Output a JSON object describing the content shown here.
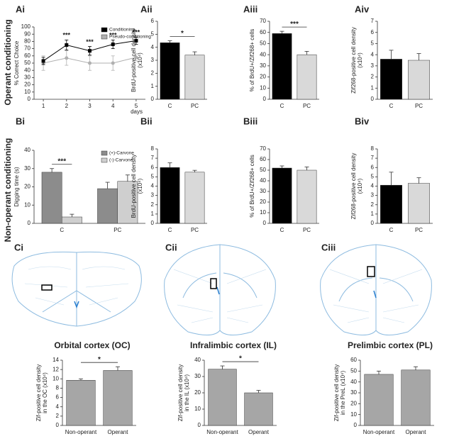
{
  "row_labels": [
    "Operant conditioning",
    "Non-operant conditioning"
  ],
  "diagram_labels": [
    "Ci",
    "Cii",
    "Ciii"
  ],
  "chart_data": [
    {
      "type": "line",
      "panel_label": "Ai",
      "ylabel": [
        "% Correct Choice"
      ],
      "xlabel": "days",
      "x": [
        1,
        2,
        3,
        4,
        5
      ],
      "xlim": [
        0.6,
        5.4
      ],
      "xticks": [
        1,
        2,
        3,
        4,
        5
      ],
      "ylim": [
        0,
        100
      ],
      "yticks": [
        0,
        10,
        20,
        30,
        40,
        50,
        60,
        70,
        80,
        90,
        100
      ],
      "legend": "upper right",
      "series": [
        {
          "name": "Conditioning",
          "color": "#000000",
          "marker": "square",
          "values": [
            53,
            75,
            67,
            76,
            81
          ],
          "errors": [
            5,
            7,
            6,
            6,
            5
          ]
        },
        {
          "name": "Pseudo-conditioning",
          "color": "#b0b0b0",
          "marker": "circle",
          "values": [
            50,
            57,
            50,
            50,
            58
          ],
          "errors": [
            10,
            10,
            10,
            10,
            5
          ]
        }
      ],
      "annotations": [
        null,
        "***",
        "***",
        "***",
        "***"
      ]
    },
    {
      "type": "bar",
      "panel_label": "Aii",
      "ylabel": [
        "BrdU-positive cell density",
        "(x10⁴)"
      ],
      "categories": [
        "C",
        "PC"
      ],
      "values": [
        4.35,
        3.4
      ],
      "errors": [
        0.15,
        0.25
      ],
      "colors": [
        "#000000",
        "#d9d9d9"
      ],
      "ylim": [
        0,
        6
      ],
      "yticks": [
        0,
        1,
        2,
        3,
        4,
        5,
        6
      ],
      "annotation": "*"
    },
    {
      "type": "bar",
      "panel_label": "Aiii",
      "ylabel": [
        "% of BrdU+/Zif268+ cells"
      ],
      "categories": [
        "C",
        "PC"
      ],
      "values": [
        59,
        40
      ],
      "errors": [
        2,
        3
      ],
      "colors": [
        "#000000",
        "#d9d9d9"
      ],
      "ylim": [
        0,
        70
      ],
      "yticks": [
        0,
        10,
        20,
        30,
        40,
        50,
        60,
        70
      ],
      "annotation": "***"
    },
    {
      "type": "bar",
      "panel_label": "Aiv",
      "ylabel": [
        "Zif268-positive cell density",
        "(x10⁴)"
      ],
      "categories": [
        "C",
        "PC"
      ],
      "values": [
        3.6,
        3.5
      ],
      "errors": [
        0.8,
        0.6
      ],
      "colors": [
        "#000000",
        "#d9d9d9"
      ],
      "ylim": [
        0,
        7
      ],
      "yticks": [
        0,
        1,
        2,
        3,
        4,
        5,
        6,
        7
      ]
    },
    {
      "type": "bar",
      "panel_label": "Bi",
      "ylabel": [
        "Digging time (s)"
      ],
      "categories": [
        "C",
        "PC"
      ],
      "legend": "upper right",
      "series": [
        {
          "name": "(+)-Carvone",
          "color": "#8c8c8c",
          "values": [
            28,
            19
          ],
          "errors": [
            2,
            3.5
          ]
        },
        {
          "name": "(-)-Carvone",
          "color": "#cfcfcf",
          "values": [
            3.5,
            23
          ],
          "errors": [
            1.5,
            3.5
          ]
        }
      ],
      "ylim": [
        0,
        40
      ],
      "yticks": [
        0,
        10,
        20,
        30,
        40
      ],
      "annotation": "***"
    },
    {
      "type": "bar",
      "panel_label": "Bii",
      "ylabel": [
        "BrdU-positive cell density",
        "(x10⁴)"
      ],
      "categories": [
        "C",
        "PC"
      ],
      "values": [
        6.0,
        5.5
      ],
      "errors": [
        0.5,
        0.2
      ],
      "colors": [
        "#000000",
        "#d9d9d9"
      ],
      "ylim": [
        0,
        8
      ],
      "yticks": [
        0,
        1,
        2,
        3,
        4,
        5,
        6,
        7,
        8
      ]
    },
    {
      "type": "bar",
      "panel_label": "Biii",
      "ylabel": [
        "% of BrdU+/Zif268+ cells"
      ],
      "categories": [
        "C",
        "PC"
      ],
      "values": [
        52,
        50
      ],
      "errors": [
        2,
        3
      ],
      "colors": [
        "#000000",
        "#d9d9d9"
      ],
      "ylim": [
        0,
        70
      ],
      "yticks": [
        0,
        10,
        20,
        30,
        40,
        50,
        60,
        70
      ]
    },
    {
      "type": "bar",
      "panel_label": "Biv",
      "ylabel": [
        "Zif268-positive cell density",
        "(x10⁴)"
      ],
      "categories": [
        "C",
        "PC"
      ],
      "values": [
        4.1,
        4.3
      ],
      "errors": [
        1.4,
        0.6
      ],
      "colors": [
        "#000000",
        "#d9d9d9"
      ],
      "ylim": [
        0,
        8
      ],
      "yticks": [
        0,
        1,
        2,
        3,
        4,
        5,
        6,
        7,
        8
      ]
    },
    {
      "type": "bar",
      "title": "Orbital cortex (OC)",
      "ylabel": [
        "Zif-positive cell density",
        "in the OC (x10⁴)"
      ],
      "categories": [
        "Non-operant",
        "Operant"
      ],
      "values": [
        9.7,
        11.8
      ],
      "errors": [
        0.3,
        0.8
      ],
      "colors": [
        "#a6a6a6",
        "#a6a6a6"
      ],
      "ylim": [
        0,
        14
      ],
      "yticks": [
        0,
        2,
        4,
        6,
        8,
        10,
        12,
        14
      ],
      "annotation": "*"
    },
    {
      "type": "bar",
      "title": "Infralimbic cortex (IL)",
      "ylabel": [
        "Zif-positive cell density",
        "in the IL (x10⁴)"
      ],
      "categories": [
        "Non-operant",
        "Operant"
      ],
      "values": [
        34.5,
        20
      ],
      "errors": [
        2,
        1.5
      ],
      "colors": [
        "#a6a6a6",
        "#a6a6a6"
      ],
      "ylim": [
        0,
        40
      ],
      "yticks": [
        0,
        10,
        20,
        30,
        40
      ],
      "annotation": "*"
    },
    {
      "type": "bar",
      "title": "Prelimbic cortex (PL)",
      "ylabel": [
        "Zif-positive cell density",
        "in the PreL (x10⁴)"
      ],
      "categories": [
        "Non-operant",
        "Operant"
      ],
      "values": [
        47,
        51
      ],
      "errors": [
        3,
        3
      ],
      "colors": [
        "#a6a6a6",
        "#a6a6a6"
      ],
      "ylim": [
        0,
        60
      ],
      "yticks": [
        0,
        10,
        20,
        30,
        40,
        50,
        60
      ]
    }
  ]
}
